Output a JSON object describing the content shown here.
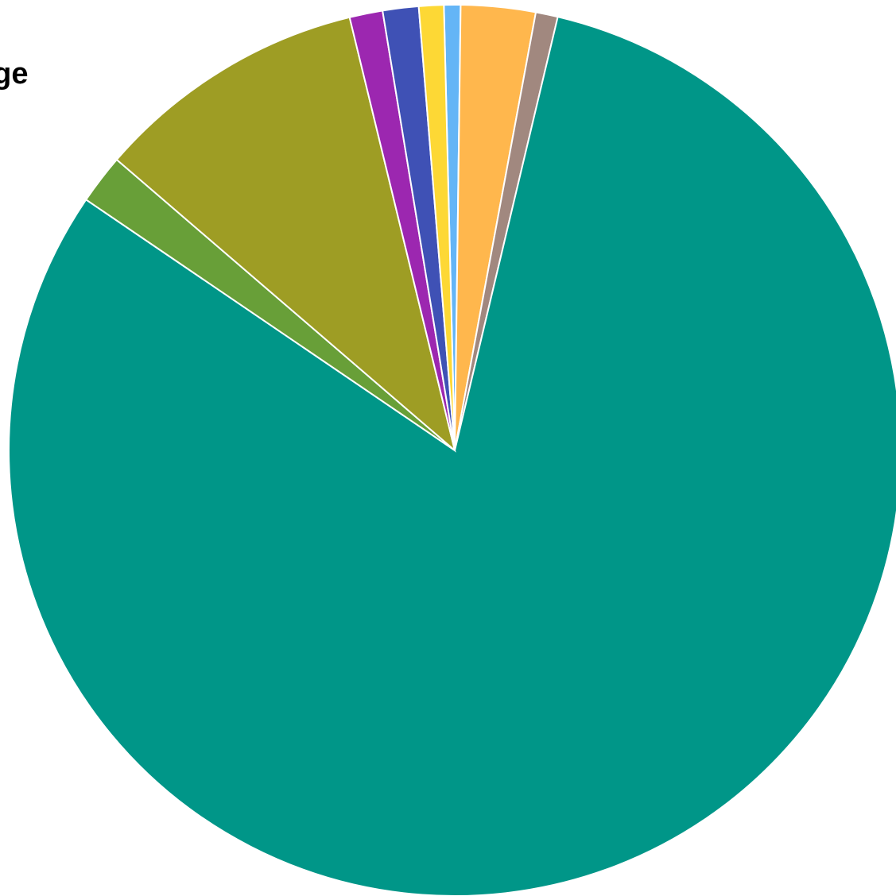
{
  "chart_data": {
    "type": "pie",
    "title": "",
    "annotation": "äge",
    "slices": [
      {
        "value": 0.6,
        "color": "#64B5F6"
      },
      {
        "value": 2.7,
        "color": "#FFB74D"
      },
      {
        "value": 0.8,
        "color": "#A1887F"
      },
      {
        "value": 80.8,
        "color": "#009688"
      },
      {
        "value": 1.8,
        "color": "#689F38"
      },
      {
        "value": 9.9,
        "color": "#9E9D24"
      },
      {
        "value": 1.2,
        "color": "#9C27B0"
      },
      {
        "value": 1.3,
        "color": "#3F51B5"
      },
      {
        "value": 0.9,
        "color": "#FDD835"
      }
    ]
  }
}
